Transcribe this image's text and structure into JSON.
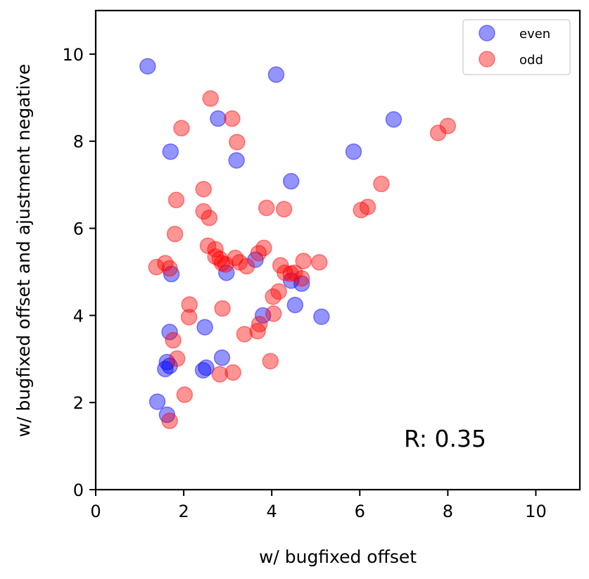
{
  "chart_data": {
    "type": "scatter",
    "xlabel": "w/ bugfixed offset",
    "ylabel": "w/ bugfixed offset and ajustment negative",
    "xlim": [
      0,
      11
    ],
    "ylim": [
      0,
      11
    ],
    "xticks": [
      0,
      2,
      4,
      6,
      8,
      10
    ],
    "yticks": [
      0,
      2,
      4,
      6,
      8,
      10
    ],
    "grid": false,
    "legend_placement": "top-right",
    "annotation": "R: 0.35",
    "series": [
      {
        "name": "even",
        "color": "#0000ff",
        "points": [
          [
            1.18,
            9.72
          ],
          [
            4.1,
            9.53
          ],
          [
            2.78,
            8.52
          ],
          [
            6.77,
            8.5
          ],
          [
            1.7,
            7.76
          ],
          [
            5.86,
            7.76
          ],
          [
            3.2,
            7.56
          ],
          [
            4.44,
            7.08
          ],
          [
            3.63,
            5.28
          ],
          [
            2.97,
            4.98
          ],
          [
            1.72,
            4.95
          ],
          [
            4.44,
            4.8
          ],
          [
            4.68,
            4.73
          ],
          [
            3.8,
            4.0
          ],
          [
            4.53,
            4.24
          ],
          [
            5.13,
            3.97
          ],
          [
            1.68,
            3.62
          ],
          [
            2.48,
            3.73
          ],
          [
            1.62,
            2.93
          ],
          [
            1.58,
            2.77
          ],
          [
            1.68,
            2.84
          ],
          [
            2.44,
            2.74
          ],
          [
            2.51,
            2.8
          ],
          [
            2.87,
            3.03
          ],
          [
            1.4,
            2.02
          ],
          [
            1.62,
            1.72
          ]
        ]
      },
      {
        "name": "odd",
        "color": "#ff0000",
        "points": [
          [
            2.61,
            8.98
          ],
          [
            3.1,
            8.52
          ],
          [
            1.95,
            8.3
          ],
          [
            3.21,
            7.98
          ],
          [
            7.78,
            8.19
          ],
          [
            8.0,
            8.35
          ],
          [
            2.45,
            6.9
          ],
          [
            1.83,
            6.65
          ],
          [
            6.49,
            7.02
          ],
          [
            2.45,
            6.39
          ],
          [
            2.58,
            6.24
          ],
          [
            3.88,
            6.47
          ],
          [
            4.28,
            6.44
          ],
          [
            6.03,
            6.42
          ],
          [
            6.18,
            6.49
          ],
          [
            1.8,
            5.87
          ],
          [
            2.55,
            5.6
          ],
          [
            2.72,
            5.52
          ],
          [
            3.82,
            5.55
          ],
          [
            3.7,
            5.43
          ],
          [
            2.72,
            5.35
          ],
          [
            2.82,
            5.3
          ],
          [
            3.17,
            5.32
          ],
          [
            2.87,
            5.2
          ],
          [
            2.95,
            5.17
          ],
          [
            3.27,
            5.22
          ],
          [
            3.43,
            5.13
          ],
          [
            1.38,
            5.11
          ],
          [
            1.58,
            5.2
          ],
          [
            1.68,
            5.08
          ],
          [
            4.2,
            5.15
          ],
          [
            4.43,
            4.96
          ],
          [
            4.52,
            4.98
          ],
          [
            4.68,
            4.85
          ],
          [
            4.72,
            5.25
          ],
          [
            5.08,
            5.22
          ],
          [
            4.3,
            4.98
          ],
          [
            4.16,
            4.55
          ],
          [
            4.03,
            4.43
          ],
          [
            2.13,
            4.25
          ],
          [
            2.12,
            3.96
          ],
          [
            2.88,
            4.16
          ],
          [
            4.04,
            4.04
          ],
          [
            3.72,
            3.8
          ],
          [
            3.68,
            3.64
          ],
          [
            3.38,
            3.57
          ],
          [
            1.76,
            3.43
          ],
          [
            1.85,
            3.01
          ],
          [
            2.82,
            2.65
          ],
          [
            3.12,
            2.69
          ],
          [
            3.97,
            2.95
          ],
          [
            2.02,
            2.18
          ],
          [
            1.68,
            1.58
          ]
        ]
      }
    ]
  }
}
